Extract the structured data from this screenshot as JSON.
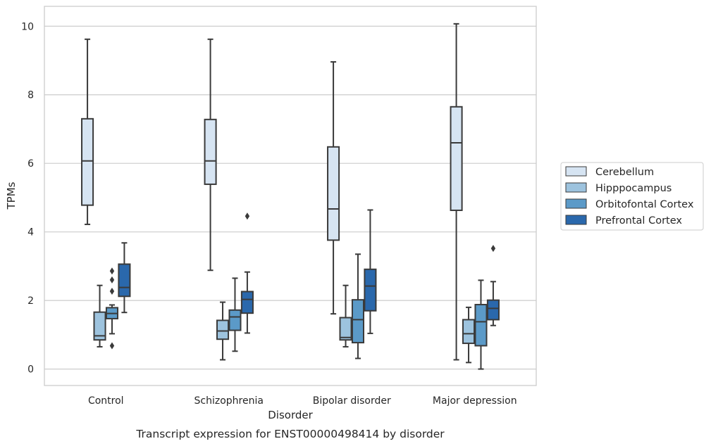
{
  "caption": "Transcript expression for ENST00000498414 by disorder",
  "chart_data": {
    "type": "box",
    "xlabel": "Disorder",
    "ylabel": "TPMs",
    "ylim": [
      -0.48,
      10.58
    ],
    "yticks": [
      0,
      2,
      4,
      6,
      8,
      10
    ],
    "grid": "horizontal",
    "legend_position": "right",
    "categories": [
      "Control",
      "Schizophrenia",
      "Bipolar disorder",
      "Major depression"
    ],
    "series": [
      {
        "name": "Cerebellum",
        "color": "#d6e4f2",
        "boxes": [
          {
            "whislo": 4.22,
            "q1": 4.78,
            "med": 6.07,
            "q3": 7.3,
            "whishi": 9.62,
            "fliers": []
          },
          {
            "whislo": 2.88,
            "q1": 5.39,
            "med": 6.07,
            "q3": 7.28,
            "whishi": 9.62,
            "fliers": []
          },
          {
            "whislo": 1.61,
            "q1": 3.76,
            "med": 4.67,
            "q3": 6.48,
            "whishi": 8.96,
            "fliers": []
          },
          {
            "whislo": 0.27,
            "q1": 4.63,
            "med": 6.6,
            "q3": 7.65,
            "whishi": 10.07,
            "fliers": []
          }
        ]
      },
      {
        "name": "Hipppocampus",
        "color": "#9dc3de",
        "boxes": [
          {
            "whislo": 0.65,
            "q1": 0.85,
            "med": 0.97,
            "q3": 1.66,
            "whishi": 2.44,
            "fliers": []
          },
          {
            "whislo": 0.27,
            "q1": 0.87,
            "med": 1.11,
            "q3": 1.42,
            "whishi": 1.95,
            "fliers": []
          },
          {
            "whislo": 0.65,
            "q1": 0.85,
            "med": 0.92,
            "q3": 1.5,
            "whishi": 2.44,
            "fliers": []
          },
          {
            "whislo": 0.19,
            "q1": 0.75,
            "med": 1.03,
            "q3": 1.44,
            "whishi": 1.8,
            "fliers": []
          }
        ]
      },
      {
        "name": "Orbitofontal Cortex",
        "color": "#5b9ac8",
        "boxes": [
          {
            "whislo": 1.03,
            "q1": 1.47,
            "med": 1.62,
            "q3": 1.79,
            "whishi": 1.87,
            "fliers": [
              2.86,
              2.6,
              2.27,
              0.68
            ]
          },
          {
            "whislo": 0.52,
            "q1": 1.13,
            "med": 1.52,
            "q3": 1.72,
            "whishi": 2.65,
            "fliers": []
          },
          {
            "whislo": 0.31,
            "q1": 0.77,
            "med": 1.44,
            "q3": 2.02,
            "whishi": 3.35,
            "fliers": []
          },
          {
            "whislo": 0.0,
            "q1": 0.68,
            "med": 1.38,
            "q3": 1.88,
            "whishi": 2.59,
            "fliers": []
          }
        ]
      },
      {
        "name": "Prefrontal Cortex",
        "color": "#2a68ac",
        "boxes": [
          {
            "whislo": 1.65,
            "q1": 2.12,
            "med": 2.38,
            "q3": 3.06,
            "whishi": 3.68,
            "fliers": []
          },
          {
            "whislo": 1.05,
            "q1": 1.63,
            "med": 2.03,
            "q3": 2.26,
            "whishi": 2.83,
            "fliers": [
              4.46
            ]
          },
          {
            "whislo": 1.04,
            "q1": 1.7,
            "med": 2.42,
            "q3": 2.91,
            "whishi": 4.64,
            "fliers": []
          },
          {
            "whislo": 1.27,
            "q1": 1.44,
            "med": 1.77,
            "q3": 2.01,
            "whishi": 2.55,
            "fliers": [
              3.52
            ]
          }
        ]
      }
    ]
  }
}
